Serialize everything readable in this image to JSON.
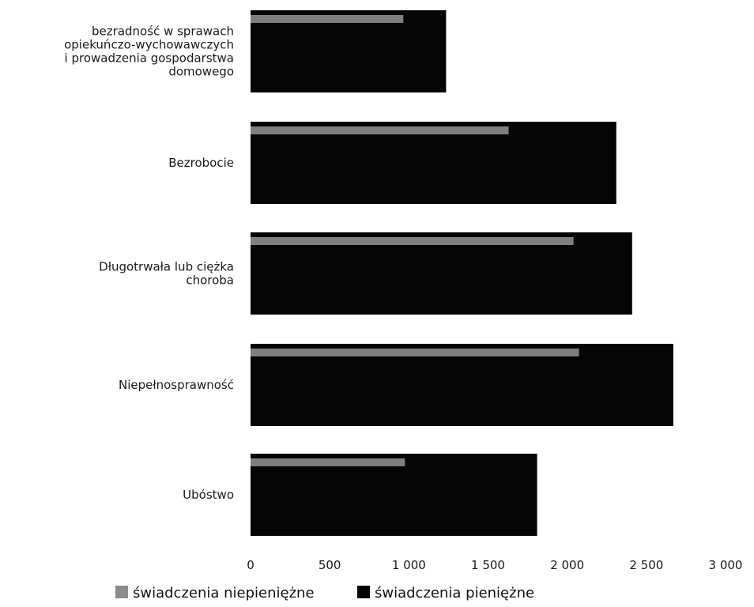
{
  "chart_data": {
    "type": "bar",
    "orientation": "horizontal",
    "stacked": false,
    "overlapped": true,
    "categories": [
      [
        "bezradność w sprawach",
        "opiekuńczo-wychowawczych",
        "i prowadzenia gospodarstwa",
        "domowego"
      ],
      [
        "Bezrobocie"
      ],
      [
        "Długotrwała lub ciężka",
        "choroba"
      ],
      [
        "Niepełnosprawność"
      ],
      [
        "Ubóstwo"
      ]
    ],
    "series": [
      {
        "name": "świadczenia pieniężne",
        "color": "#050505",
        "values": [
          1235,
          2310,
          2410,
          2670,
          1810
        ]
      },
      {
        "name": "świadczenia niepieniężne",
        "color": "#8c8c8c",
        "values": [
          965,
          1630,
          2040,
          2075,
          975
        ]
      }
    ],
    "xlim": [
      0,
      3000
    ],
    "xticks": [
      0,
      500,
      1000,
      1500,
      2000,
      2500,
      3000
    ],
    "xtick_labels": [
      "0",
      "500",
      "1 000",
      "1 500",
      "2 000",
      "2 500",
      "3 000"
    ],
    "grid": false,
    "legend_position": "bottom",
    "legend": [
      {
        "label": "świadczenia niepieniężne",
        "color": "#8c8c8c"
      },
      {
        "label": "świadczenia pieniężne",
        "color": "#050505"
      }
    ]
  }
}
